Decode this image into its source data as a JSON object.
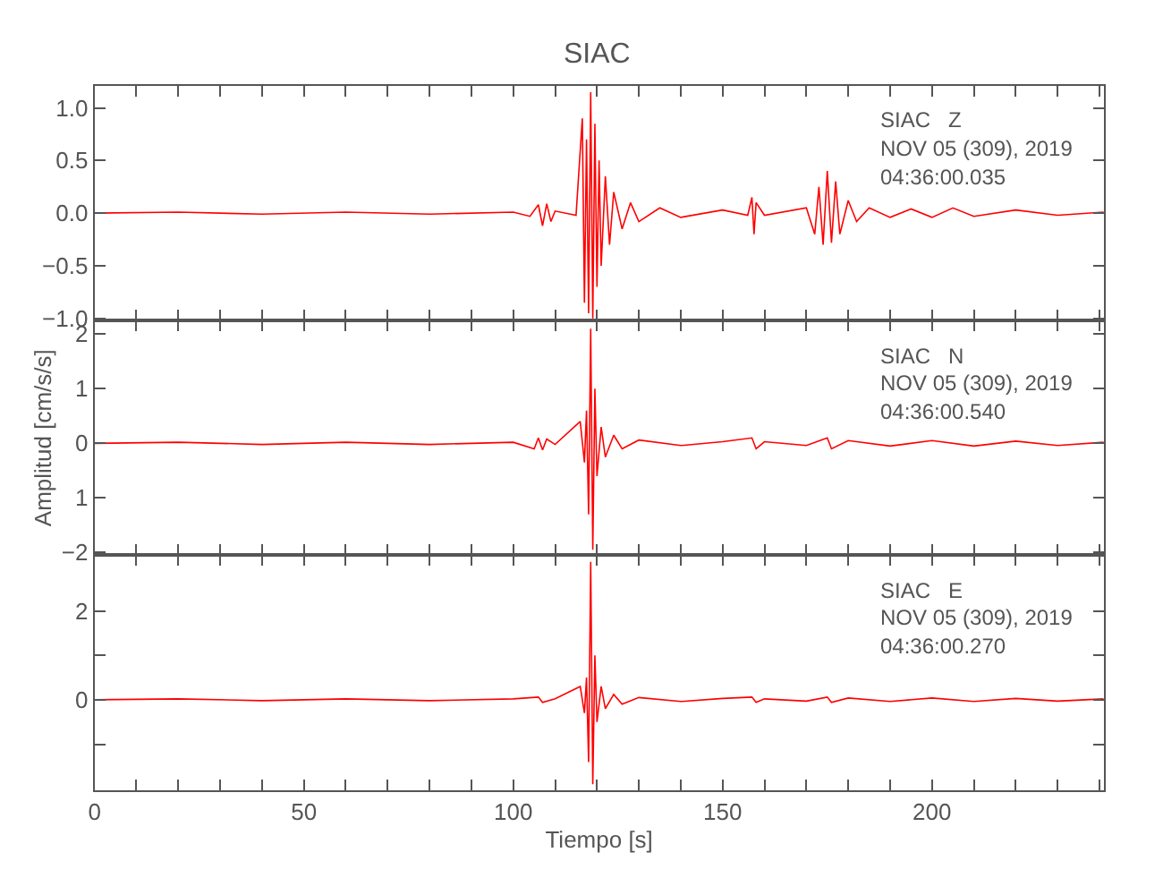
{
  "chart_data": [
    {
      "type": "line",
      "title": "SIAC",
      "tick_labels": "y",
      "xlim": [
        0,
        241
      ],
      "xticks": [
        0,
        {
          "value": 10,
          "label": null
        },
        {
          "value": 20,
          "label": null
        },
        {
          "value": 30,
          "label": null
        },
        {
          "value": 40,
          "label": null
        },
        50,
        {
          "value": 60,
          "label": null
        },
        {
          "value": 70,
          "label": null
        },
        {
          "value": 80,
          "label": null
        },
        {
          "value": 90,
          "label": null
        },
        100,
        {
          "value": 110,
          "label": null
        },
        {
          "value": 120,
          "label": null
        },
        {
          "value": 130,
          "label": null
        },
        {
          "value": 140,
          "label": null
        },
        150,
        {
          "value": 160,
          "label": null
        },
        {
          "value": 170,
          "label": null
        },
        {
          "value": 180,
          "label": null
        },
        {
          "value": 190,
          "label": null
        },
        200,
        {
          "value": 210,
          "label": null
        },
        {
          "value": 220,
          "label": null
        },
        {
          "value": 230,
          "label": null
        },
        {
          "value": 240,
          "label": null
        }
      ],
      "ylim": [
        -1.02,
        1.21
      ],
      "yticks": [
        {
          "value": -1,
          "label": "−1.0"
        },
        {
          "value": -0.5,
          "label": "−0.5"
        },
        {
          "value": 0,
          "label": "0.0"
        },
        {
          "value": 0.5,
          "label": "0.5"
        },
        {
          "value": 1,
          "label": "1.0"
        }
      ],
      "annotations": [
        "SIAC   Z",
        "NOV 05 (309), 2019",
        "04:36:00.035"
      ],
      "series": [
        {
          "color": "#ff0000",
          "x": [
            0,
            20,
            40,
            60,
            80,
            100,
            104,
            106,
            107,
            108,
            109,
            110,
            115,
            116.5,
            117,
            117.5,
            118,
            118.5,
            119,
            119.5,
            120,
            120.5,
            121,
            122,
            123,
            124,
            126,
            128,
            130,
            135,
            140,
            150,
            156,
            157,
            157.5,
            158,
            160,
            170,
            172,
            173,
            174,
            175,
            176,
            177,
            178,
            180,
            182,
            185,
            190,
            195,
            200,
            205,
            210,
            220,
            230,
            241
          ],
          "values": [
            0,
            0.01,
            -0.01,
            0.01,
            -0.01,
            0.01,
            -0.03,
            0.08,
            -0.12,
            0.09,
            -0.08,
            0.02,
            -0.02,
            0.9,
            -0.85,
            0.7,
            -0.95,
            1.15,
            -1.0,
            0.85,
            -0.7,
            0.5,
            -0.5,
            0.35,
            -0.3,
            0.2,
            -0.15,
            0.1,
            -0.08,
            0.05,
            -0.04,
            0.03,
            -0.02,
            0.15,
            -0.2,
            0.1,
            -0.02,
            0.05,
            -0.2,
            0.25,
            -0.3,
            0.4,
            -0.28,
            0.3,
            -0.2,
            0.12,
            -0.08,
            0.05,
            -0.04,
            0.04,
            -0.04,
            0.05,
            -0.03,
            0.03,
            -0.02,
            0.01
          ]
        }
      ]
    },
    {
      "type": "line",
      "ylabel": "Amplitud [cm/s/s]",
      "tick_labels": "y",
      "xlim": [
        0,
        241
      ],
      "xticks": [
        0,
        {
          "value": 10,
          "label": null
        },
        {
          "value": 20,
          "label": null
        },
        {
          "value": 30,
          "label": null
        },
        {
          "value": 40,
          "label": null
        },
        50,
        {
          "value": 60,
          "label": null
        },
        {
          "value": 70,
          "label": null
        },
        {
          "value": 80,
          "label": null
        },
        {
          "value": 90,
          "label": null
        },
        100,
        {
          "value": 110,
          "label": null
        },
        {
          "value": 120,
          "label": null
        },
        {
          "value": 130,
          "label": null
        },
        {
          "value": 140,
          "label": null
        },
        150,
        {
          "value": 160,
          "label": null
        },
        {
          "value": 170,
          "label": null
        },
        {
          "value": 180,
          "label": null
        },
        {
          "value": 190,
          "label": null
        },
        200,
        {
          "value": 210,
          "label": null
        },
        {
          "value": 220,
          "label": null
        },
        {
          "value": 230,
          "label": null
        },
        {
          "value": 240,
          "label": null
        }
      ],
      "ylim": [
        -2.05,
        2.25
      ],
      "yticks": [
        {
          "value": -2,
          "label": "−2"
        },
        {
          "value": -1,
          "label": "1"
        },
        0,
        1,
        2
      ],
      "annotations": [
        "SIAC   N",
        "NOV 05 (309), 2019",
        "04:36:00.540"
      ],
      "series": [
        {
          "color": "#ff0000",
          "x": [
            0,
            20,
            40,
            60,
            80,
            100,
            105,
            106,
            107,
            108,
            110,
            116,
            117,
            117.5,
            118,
            118.5,
            119,
            119.5,
            120,
            121,
            122,
            124,
            126,
            130,
            140,
            150,
            157,
            158,
            160,
            170,
            175,
            176,
            180,
            190,
            200,
            210,
            220,
            230,
            241
          ],
          "values": [
            0,
            0.02,
            -0.02,
            0.02,
            -0.02,
            0.02,
            -0.1,
            0.1,
            -0.12,
            0.08,
            -0.02,
            0.4,
            -0.35,
            0.6,
            -1.3,
            2.1,
            -1.95,
            1.0,
            -0.6,
            0.3,
            -0.25,
            0.15,
            -0.1,
            0.06,
            -0.04,
            0.03,
            0.1,
            -0.1,
            0.03,
            -0.04,
            0.1,
            -0.1,
            0.05,
            -0.05,
            0.05,
            -0.05,
            0.04,
            -0.04,
            0.02
          ]
        }
      ]
    },
    {
      "type": "line",
      "xlabel": "Tiempo [s]",
      "xlim": [
        0,
        241
      ],
      "xticks": [
        0,
        {
          "value": 10,
          "label": null
        },
        {
          "value": 20,
          "label": null
        },
        {
          "value": 30,
          "label": null
        },
        {
          "value": 40,
          "label": null
        },
        50,
        {
          "value": 60,
          "label": null
        },
        {
          "value": 70,
          "label": null
        },
        {
          "value": 80,
          "label": null
        },
        {
          "value": 90,
          "label": null
        },
        100,
        {
          "value": 110,
          "label": null
        },
        {
          "value": 120,
          "label": null
        },
        {
          "value": 130,
          "label": null
        },
        {
          "value": 140,
          "label": null
        },
        150,
        {
          "value": 160,
          "label": null
        },
        {
          "value": 170,
          "label": null
        },
        {
          "value": 180,
          "label": null
        },
        {
          "value": 190,
          "label": null
        },
        200,
        {
          "value": 210,
          "label": null
        },
        {
          "value": 220,
          "label": null
        },
        {
          "value": 230,
          "label": null
        },
        {
          "value": 240,
          "label": null
        }
      ],
      "ylim": [
        -2.03,
        3.25
      ],
      "yticks": [
        {
          "value": -1,
          "label": null
        },
        0,
        {
          "value": 1,
          "label": null
        },
        2
      ],
      "annotations": [
        "SIAC   E",
        "NOV 05 (309), 2019",
        "04:36:00.270"
      ],
      "series": [
        {
          "color": "#ff0000",
          "x": [
            0,
            20,
            40,
            60,
            80,
            100,
            106,
            107,
            110,
            116,
            117,
            117.5,
            118,
            118.5,
            119,
            119.5,
            120,
            121,
            122,
            124,
            126,
            130,
            140,
            150,
            157,
            158,
            160,
            170,
            175,
            176,
            180,
            190,
            200,
            210,
            220,
            230,
            241
          ],
          "values": [
            0,
            0.02,
            -0.02,
            0.02,
            -0.02,
            0.02,
            0.06,
            -0.06,
            0.02,
            0.3,
            -0.3,
            0.5,
            -1.4,
            3.1,
            -1.9,
            1.0,
            -0.5,
            0.3,
            -0.2,
            0.12,
            -0.1,
            0.05,
            -0.04,
            0.03,
            0.06,
            -0.06,
            0.02,
            -0.03,
            0.06,
            -0.06,
            0.04,
            -0.04,
            0.04,
            -0.04,
            0.03,
            -0.03,
            0.02
          ]
        }
      ]
    }
  ]
}
